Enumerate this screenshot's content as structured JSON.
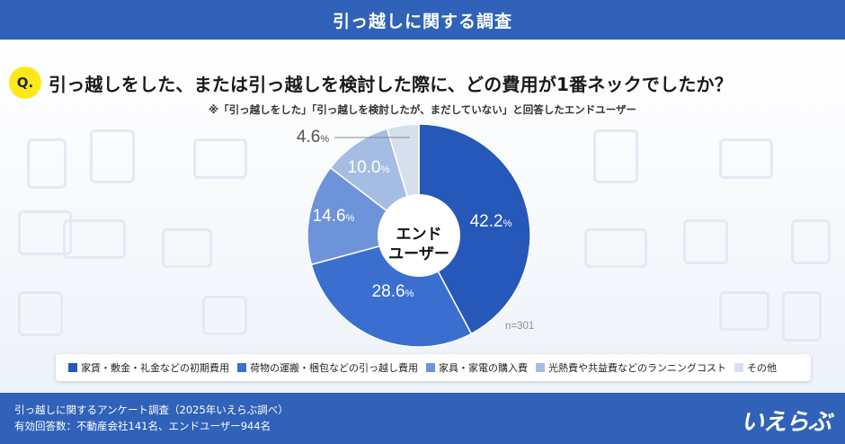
{
  "header": {
    "title": "引っ越しに関する調査"
  },
  "question": {
    "badge": "Q.",
    "text": "引っ越しをした、または引っ越しを検討した際に、どの費用が1番ネックでしたか？",
    "note": "※「引っ越しをした」「引っ越しを検討したが、まだしていない」と回答したエンドユーザー"
  },
  "chart_data": {
    "type": "pie",
    "donut": true,
    "center_label": [
      "エンド",
      "ユーザー"
    ],
    "sample": "n=301",
    "slices": [
      {
        "name": "家賃・敷金・礼金などの初期費用",
        "value": 42.2,
        "label": "42.2",
        "color": "#2558b8",
        "text_color": "#ffffff"
      },
      {
        "name": "荷物の運搬・梱包などの引っ越し費用",
        "value": 28.6,
        "label": "28.6",
        "color": "#3b6fcf",
        "text_color": "#ffffff"
      },
      {
        "name": "家具・家電の購入費",
        "value": 14.6,
        "label": "14.6",
        "color": "#6d94da",
        "text_color": "#ffffff"
      },
      {
        "name": "光熱費や共益費などのランニングコスト",
        "value": 10.0,
        "label": "10.0",
        "color": "#a6bde3",
        "text_color": "#ffffff"
      },
      {
        "name": "その他",
        "value": 4.6,
        "label": "4.6",
        "color": "#d6dfee",
        "text_color": "#555555"
      }
    ],
    "unit": "%",
    "legend_position": "bottom"
  },
  "footer": {
    "line1": "引っ越しに関するアンケート調査（2025年いえらぶ調べ）",
    "line2": "有効回答数：不動産会社141名、エンドユーザー944名",
    "logo": "いえらぶ"
  }
}
